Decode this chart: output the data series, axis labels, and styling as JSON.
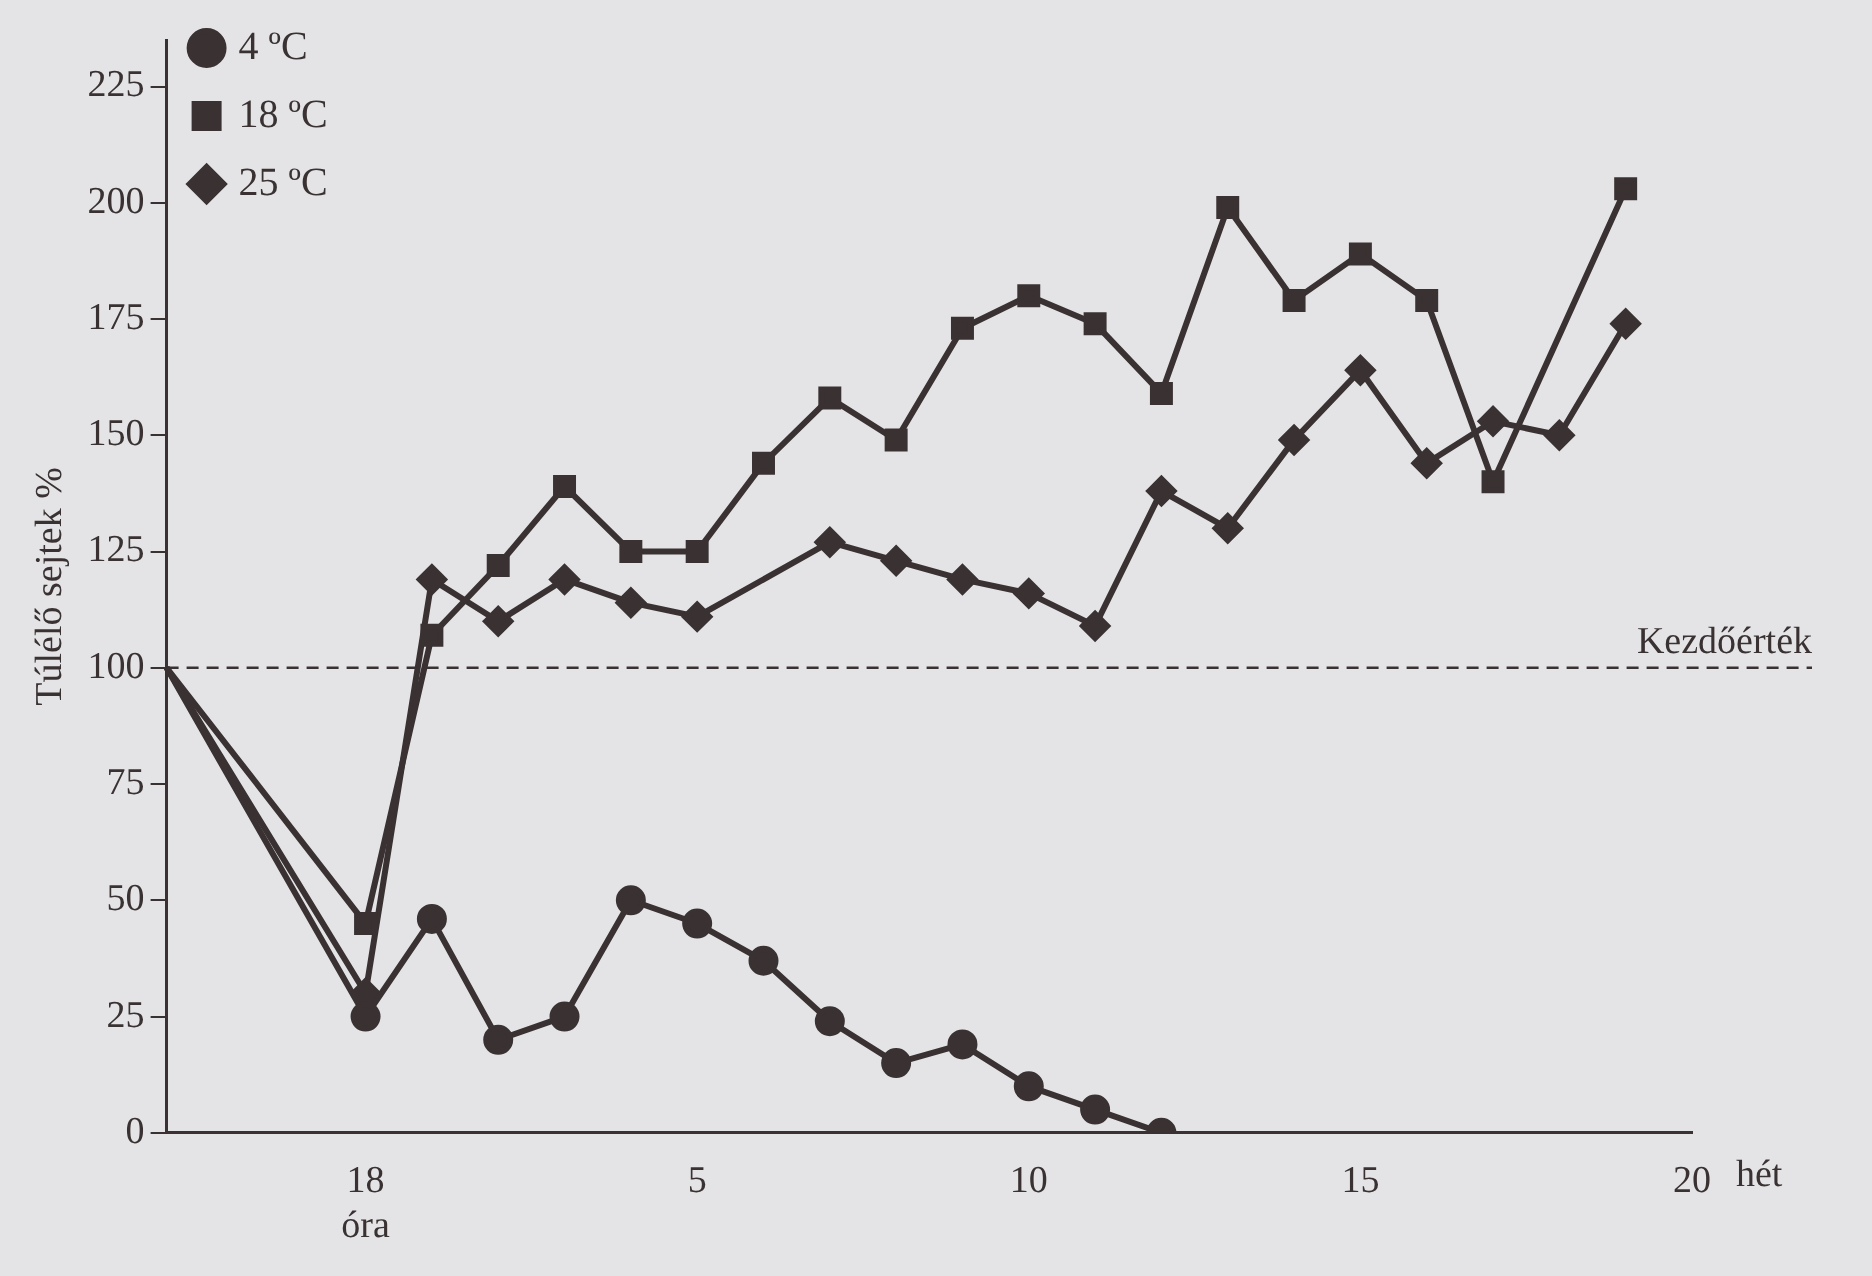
{
  "chart_data": {
    "type": "line",
    "ylabel": "Túlélő sejtek %",
    "xlabel": "hét",
    "categories": [
      null,
      null,
      null,
      "18 óra",
      null,
      null,
      null,
      null,
      "5",
      null,
      null,
      null,
      null,
      "10",
      null,
      null,
      null,
      null,
      "15",
      null,
      null,
      null,
      null,
      "20"
    ],
    "series": [
      {
        "name": "4 ºC",
        "color": "#3a3232",
        "marker": "circle",
        "values": [
          100,
          null,
          null,
          25,
          46,
          20,
          25,
          50,
          45,
          37,
          24,
          15,
          19,
          10,
          5,
          0,
          null,
          null,
          null,
          null,
          null,
          null,
          null,
          null
        ]
      },
      {
        "name": "18 ºC",
        "color": "#3a3232",
        "marker": "square",
        "values": [
          100,
          null,
          null,
          45,
          107,
          122,
          139,
          125,
          125,
          144,
          158,
          149,
          173,
          180,
          174,
          159,
          199,
          179,
          189,
          179,
          140,
          null,
          203,
          null
        ]
      },
      {
        "name": "25 ºC",
        "color": "#3a3232",
        "marker": "diamond",
        "values": [
          100,
          null,
          null,
          30,
          119,
          110,
          119,
          114,
          111,
          null,
          127,
          123,
          119,
          116,
          109,
          138,
          130,
          149,
          164,
          144,
          153,
          150,
          174,
          null
        ]
      }
    ],
    "ylim": [
      0,
      235
    ],
    "yticks": [
      0,
      25,
      50,
      75,
      100,
      125,
      150,
      175,
      200,
      225
    ],
    "ref_lines": [
      {
        "axis": "y",
        "value": 100,
        "label": "Kezdőérték",
        "line_style": "dashed",
        "color": "#3a3232"
      }
    ],
    "legend": "top left",
    "grid": false,
    "line_style": "solid"
  }
}
